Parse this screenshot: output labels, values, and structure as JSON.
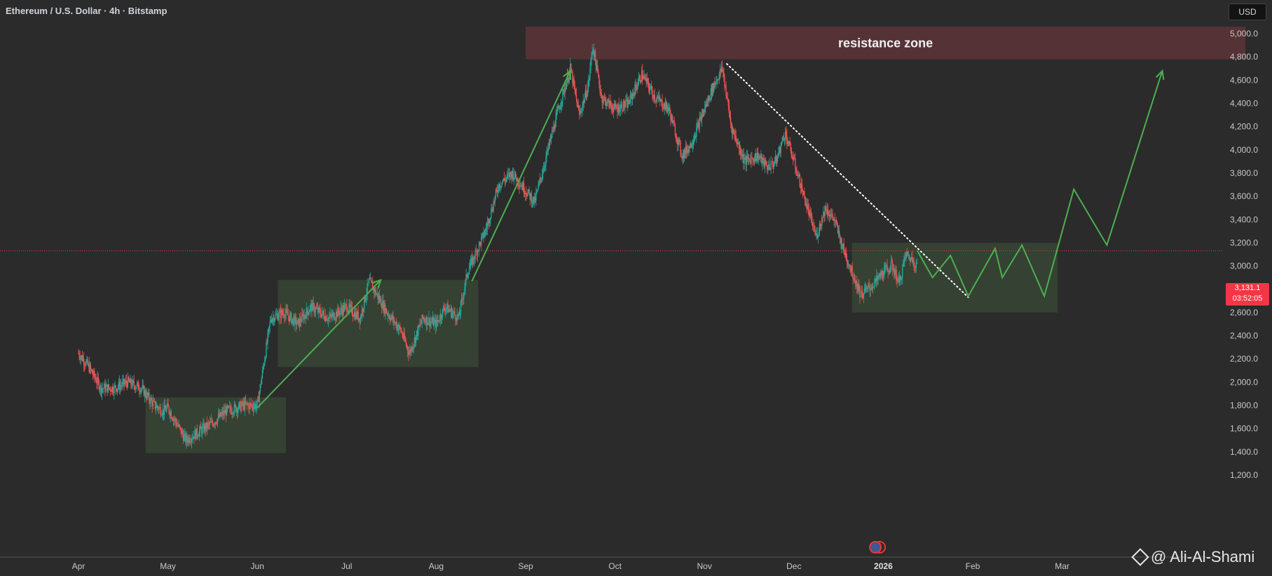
{
  "header": {
    "title": "Ethereum / U.S. Dollar · 4h · Bitstamp"
  },
  "toolbar": {
    "currency": "USD"
  },
  "price_badge": {
    "price": "3,131.1",
    "countdown": "03:52:05"
  },
  "watermark": {
    "text": "@ Ali-Al-Shami"
  },
  "annotations": {
    "resistance_label": "resistance zone"
  },
  "colors": {
    "background": "#2b2b2b",
    "candle_up": "#26a69a",
    "candle_down": "#ef5350",
    "resistance_fill": "#5a3336",
    "box_fill": "#3a4a36",
    "arrow": "#4caf50",
    "price_line": "#f23645"
  },
  "chart_data": {
    "type": "candlestick",
    "title": "Ethereum / U.S. Dollar · 4h · Bitstamp",
    "ylim": [
      1200,
      5000
    ],
    "yticks": [
      1200,
      1400,
      1600,
      1800,
      2000,
      2200,
      2400,
      2600,
      2800,
      3000,
      3200,
      3400,
      3600,
      3800,
      4000,
      4200,
      4400,
      4600,
      4800,
      5000
    ],
    "ytick_labels": [
      "1,200.0",
      "1,400.0",
      "1,600.0",
      "1,800.0",
      "2,000.0",
      "2,200.0",
      "2,400.0",
      "2,600.0",
      "2,800.0",
      "3,000.0",
      "3,200.0",
      "3,400.0",
      "3,600.0",
      "3,800.0",
      "4,000.0",
      "4,200.0",
      "4,400.0",
      "4,600.0",
      "4,800.0",
      "5,000.0"
    ],
    "xtick_labels": [
      "Apr",
      "May",
      "Jun",
      "Jul",
      "Aug",
      "Sep",
      "Oct",
      "Nov",
      "Dec",
      "2026",
      "Feb",
      "Mar"
    ],
    "xtick_months": [
      3,
      4,
      5,
      6,
      7,
      8,
      9,
      10,
      11,
      12,
      13,
      14
    ],
    "current_price": 3131.1,
    "price_path": [
      [
        0.0,
        2250
      ],
      [
        0.1,
        2150
      ],
      [
        0.25,
        1950
      ],
      [
        0.4,
        1950
      ],
      [
        0.55,
        2000
      ],
      [
        0.7,
        1950
      ],
      [
        0.85,
        1800
      ],
      [
        0.95,
        1750
      ],
      [
        1.0,
        1780
      ],
      [
        1.2,
        1500
      ],
      [
        1.3,
        1550
      ],
      [
        1.5,
        1650
      ],
      [
        1.65,
        1750
      ],
      [
        1.85,
        1800
      ],
      [
        2.0,
        1800
      ],
      [
        2.15,
        2550
      ],
      [
        2.3,
        2600
      ],
      [
        2.45,
        2500
      ],
      [
        2.6,
        2650
      ],
      [
        2.8,
        2550
      ],
      [
        3.0,
        2650
      ],
      [
        3.15,
        2550
      ],
      [
        3.25,
        2870
      ],
      [
        3.45,
        2600
      ],
      [
        3.6,
        2450
      ],
      [
        3.7,
        2250
      ],
      [
        3.85,
        2550
      ],
      [
        4.0,
        2500
      ],
      [
        4.1,
        2650
      ],
      [
        4.25,
        2550
      ],
      [
        4.35,
        2950
      ],
      [
        4.55,
        3300
      ],
      [
        4.7,
        3700
      ],
      [
        4.85,
        3800
      ],
      [
        5.0,
        3650
      ],
      [
        5.1,
        3550
      ],
      [
        5.2,
        3850
      ],
      [
        5.35,
        4300
      ],
      [
        5.5,
        4700
      ],
      [
        5.6,
        4300
      ],
      [
        5.7,
        4550
      ],
      [
        5.75,
        4900
      ],
      [
        5.85,
        4450
      ],
      [
        6.0,
        4350
      ],
      [
        6.15,
        4400
      ],
      [
        6.3,
        4650
      ],
      [
        6.45,
        4450
      ],
      [
        6.6,
        4350
      ],
      [
        6.75,
        3950
      ],
      [
        6.85,
        4050
      ],
      [
        7.0,
        4350
      ],
      [
        7.1,
        4550
      ],
      [
        7.2,
        4700
      ],
      [
        7.3,
        4200
      ],
      [
        7.45,
        3900
      ],
      [
        7.6,
        3950
      ],
      [
        7.7,
        3850
      ],
      [
        7.8,
        3900
      ],
      [
        7.9,
        4150
      ],
      [
        8.0,
        3900
      ],
      [
        8.15,
        3500
      ],
      [
        8.25,
        3250
      ],
      [
        8.35,
        3500
      ],
      [
        8.45,
        3400
      ],
      [
        8.55,
        3150
      ],
      [
        8.65,
        2950
      ],
      [
        8.75,
        2750
      ],
      [
        8.9,
        2850
      ],
      [
        9.0,
        2950
      ],
      [
        9.1,
        3000
      ],
      [
        9.18,
        2850
      ],
      [
        9.25,
        3100
      ],
      [
        9.33,
        3050
      ],
      [
        9.38,
        3000
      ]
    ],
    "resistance_zone": {
      "x0": 5.0,
      "x1": 13.05,
      "y0": 4780,
      "y1": 5060,
      "label": "resistance zone"
    },
    "consolidation_boxes": [
      {
        "x0": 0.75,
        "x1": 2.32,
        "y0": 1390,
        "y1": 1870
      },
      {
        "x0": 2.23,
        "x1": 4.47,
        "y0": 2130,
        "y1": 2880
      },
      {
        "x0": 8.65,
        "x1": 10.95,
        "y0": 2600,
        "y1": 3200
      }
    ],
    "trendline": {
      "x0": 7.25,
      "y0": 4740,
      "x1": 9.95,
      "y1": 2730,
      "style": "dotted"
    },
    "arrows": [
      {
        "points": [
          [
            2.0,
            1780
          ],
          [
            3.38,
            2880
          ]
        ]
      },
      {
        "points": [
          [
            4.4,
            2870
          ],
          [
            5.5,
            4680
          ]
        ]
      },
      {
        "points": [
          [
            9.38,
            3131
          ],
          [
            9.55,
            2900
          ],
          [
            9.75,
            3090
          ],
          [
            9.95,
            2740
          ],
          [
            10.25,
            3150
          ],
          [
            10.33,
            2900
          ],
          [
            10.55,
            3180
          ],
          [
            10.8,
            2740
          ],
          [
            11.13,
            3660
          ],
          [
            11.5,
            3180
          ],
          [
            12.12,
            4680
          ]
        ]
      }
    ]
  }
}
